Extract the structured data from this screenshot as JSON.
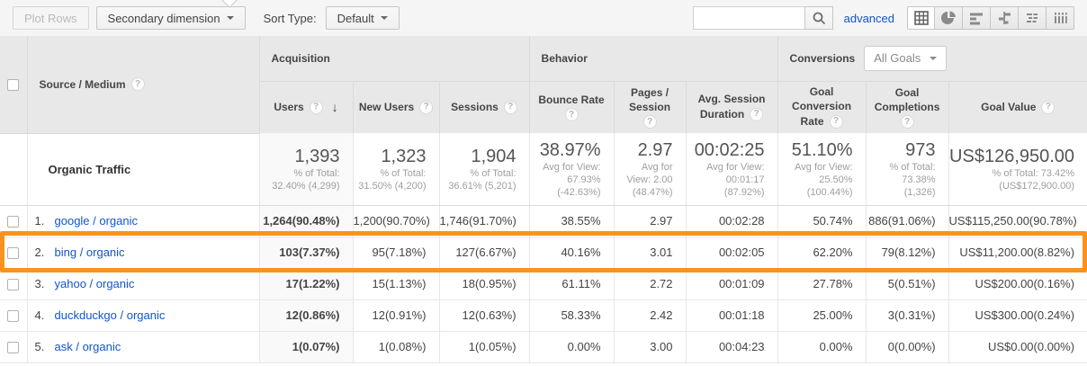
{
  "toolbar": {
    "plot_rows_label": "Plot Rows",
    "secondary_dimension_label": "Secondary dimension",
    "sort_type_label": "Sort Type:",
    "sort_type_value": "Default",
    "search_value": "",
    "search_placeholder": "",
    "advanced_label": "advanced",
    "view_buttons": [
      "table-view",
      "percentage-view",
      "performance-view",
      "comparison-view",
      "term-cloud-view",
      "pivot-view"
    ],
    "active_view": "table-view"
  },
  "colors": {
    "highlight_orange": "#f7941e",
    "link_blue": "#1155cc",
    "header_gray": "#e8e8e8"
  },
  "header": {
    "dimension_label": "Source / Medium",
    "groups": {
      "acquisition": "Acquisition",
      "behavior": "Behavior",
      "conversions": "Conversions",
      "conversions_selector": "All Goals"
    },
    "metrics": {
      "users": {
        "l1": "Users",
        "sorted": "descending"
      },
      "new_users": {
        "l1": "New Users"
      },
      "sessions": {
        "l1": "Sessions"
      },
      "bounce_rate": {
        "l1": "Bounce Rate"
      },
      "pages_session": {
        "l1": "Pages /",
        "l2": "Session"
      },
      "avg_duration": {
        "l1": "Avg. Session",
        "l2": "Duration"
      },
      "goal_conv_rate": {
        "l1": "Goal",
        "l2": "Conversion",
        "l3": "Rate"
      },
      "goal_completions": {
        "l1": "Goal",
        "l2": "Completions"
      },
      "goal_value": {
        "l1": "Goal Value"
      }
    }
  },
  "summary": {
    "label": "Organic Traffic",
    "metrics": {
      "users": {
        "value": "1,393",
        "sub": [
          "% of Total:",
          "32.40% (4,299)"
        ]
      },
      "new_users": {
        "value": "1,323",
        "sub": [
          "% of Total:",
          "31.50% (4,200)"
        ]
      },
      "sessions": {
        "value": "1,904",
        "sub": [
          "% of Total:",
          "36.61% (5,201)"
        ]
      },
      "bounce_rate": {
        "value": "38.97%",
        "sub": [
          "Avg for View:",
          "67.93%",
          "(-42.63%)"
        ]
      },
      "pages_session": {
        "value": "2.97",
        "sub": [
          "Avg for",
          "View: 2.00",
          "(48.47%)"
        ]
      },
      "avg_duration": {
        "value": "00:02:25",
        "sub": [
          "Avg for View:",
          "00:01:17",
          "(87.92%)"
        ]
      },
      "goal_conv_rate": {
        "value": "51.10%",
        "sub": [
          "Avg for View:",
          "25.50%",
          "(100.44%)"
        ]
      },
      "goal_completions": {
        "value": "973",
        "sub": [
          "% of Total:",
          "73.38%",
          "(1,326)"
        ]
      },
      "goal_value": {
        "value": "US$126,950.00",
        "sub": [
          "% of Total: 73.42%",
          "(US$172,900.00)"
        ]
      }
    }
  },
  "rows": [
    {
      "num": "1.",
      "source": "google / organic",
      "users": "1,264(90.48%)",
      "new_users": "1,200(90.70%)",
      "sessions": "1,746(91.70%)",
      "bounce_rate": "38.55%",
      "pages_session": "2.97",
      "avg_duration": "00:02:28",
      "goal_conv_rate": "50.74%",
      "goal_completions": "886(91.06%)",
      "goal_value": "US$115,250.00(90.78%)",
      "highlighted": false
    },
    {
      "num": "2.",
      "source": "bing / organic",
      "users": "103(7.37%)",
      "new_users": "95(7.18%)",
      "sessions": "127(6.67%)",
      "bounce_rate": "40.16%",
      "pages_session": "3.01",
      "avg_duration": "00:02:05",
      "goal_conv_rate": "62.20%",
      "goal_completions": "79(8.12%)",
      "goal_value": "US$11,200.00(8.82%)",
      "highlighted": true
    },
    {
      "num": "3.",
      "source": "yahoo / organic",
      "users": "17(1.22%)",
      "new_users": "15(1.13%)",
      "sessions": "18(0.95%)",
      "bounce_rate": "61.11%",
      "pages_session": "2.72",
      "avg_duration": "00:01:09",
      "goal_conv_rate": "27.78%",
      "goal_completions": "5(0.51%)",
      "goal_value": "US$200.00(0.16%)",
      "highlighted": false
    },
    {
      "num": "4.",
      "source": "duckduckgo / organic",
      "users": "12(0.86%)",
      "new_users": "12(0.91%)",
      "sessions": "12(0.63%)",
      "bounce_rate": "58.33%",
      "pages_session": "2.42",
      "avg_duration": "00:01:18",
      "goal_conv_rate": "25.00%",
      "goal_completions": "3(0.31%)",
      "goal_value": "US$300.00(0.24%)",
      "highlighted": false
    },
    {
      "num": "5.",
      "source": "ask / organic",
      "users": "1(0.07%)",
      "new_users": "1(0.08%)",
      "sessions": "1(0.05%)",
      "bounce_rate": "0.00%",
      "pages_session": "3.00",
      "avg_duration": "00:04:23",
      "goal_conv_rate": "0.00%",
      "goal_completions": "0(0.00%)",
      "goal_value": "US$0.00(0.00%)",
      "highlighted": false
    }
  ]
}
